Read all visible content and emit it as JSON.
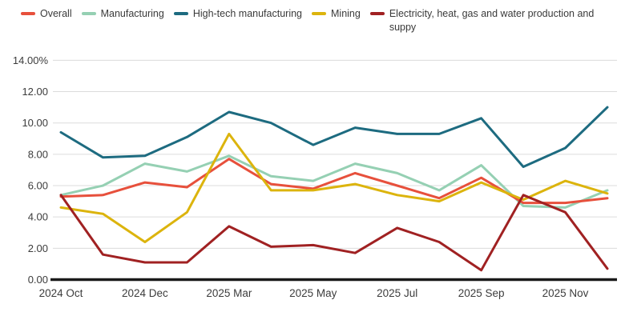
{
  "chart_data": {
    "type": "line",
    "title": "",
    "xlabel": "",
    "ylabel": "",
    "ylim": [
      0,
      14
    ],
    "y_tick_step": 2,
    "grid": true,
    "legend_position": "top",
    "y_tick_labels": [
      "0.00",
      "2.00",
      "4.00",
      "6.00",
      "8.00",
      "10.00",
      "12.00",
      "14.00%"
    ],
    "x_labels": [
      "2024 Oct",
      "",
      "2024 Dec",
      "",
      "2025 Mar",
      "",
      "2025 May",
      "",
      "2025 Jul",
      "",
      "2025 Sep",
      "",
      "2025 Nov",
      ""
    ],
    "series": [
      {
        "name": "Overall",
        "color": "#e7503c",
        "values": [
          5.3,
          5.4,
          6.2,
          5.9,
          7.7,
          6.1,
          5.8,
          6.8,
          6.0,
          5.2,
          6.5,
          4.9,
          4.9,
          5.2
        ]
      },
      {
        "name": "Manufacturing",
        "color": "#95d0b3",
        "values": [
          5.4,
          6.0,
          7.4,
          6.9,
          7.9,
          6.6,
          6.3,
          7.4,
          6.8,
          5.7,
          7.3,
          4.7,
          4.6,
          5.7
        ]
      },
      {
        "name": "High-tech manufacturing",
        "color": "#1d6b80",
        "values": [
          9.4,
          7.8,
          7.9,
          9.1,
          10.7,
          10.0,
          8.6,
          9.7,
          9.3,
          9.3,
          10.3,
          7.2,
          8.4,
          11.0
        ]
      },
      {
        "name": "Mining",
        "color": "#dcb40d",
        "values": [
          4.6,
          4.2,
          2.4,
          4.3,
          9.3,
          5.7,
          5.7,
          6.1,
          5.4,
          5.0,
          6.2,
          5.1,
          6.3,
          5.5
        ]
      },
      {
        "name": "Electricity, heat, gas and water production and suppy",
        "color": "#a02122",
        "values": [
          5.4,
          1.6,
          1.1,
          1.1,
          3.4,
          2.1,
          2.2,
          1.7,
          3.3,
          2.4,
          0.6,
          5.4,
          4.3,
          0.7
        ]
      }
    ]
  }
}
